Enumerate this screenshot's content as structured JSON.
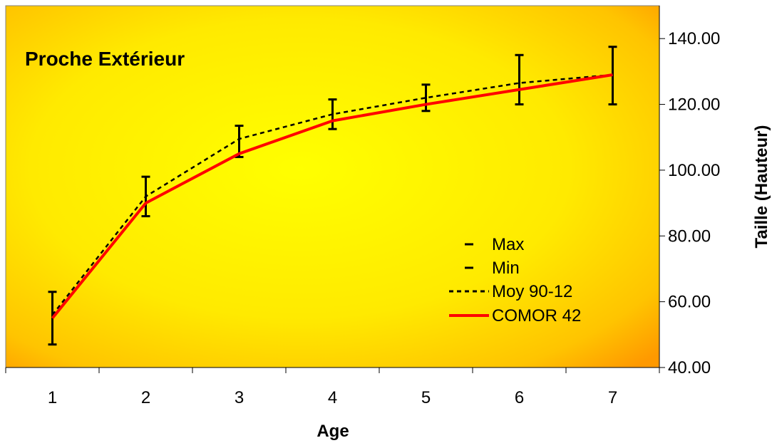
{
  "chart_data": {
    "type": "line",
    "title": "Proche Extérieur",
    "xlabel": "Age",
    "ylabel": "Taille (Hauteur)",
    "x": [
      1,
      2,
      3,
      4,
      5,
      6,
      7
    ],
    "ylim": [
      40,
      150
    ],
    "yticks": [
      "40.00",
      "60.00",
      "80.00",
      "100.00",
      "120.00",
      "140.00"
    ],
    "y_axis_position": "right",
    "grid": false,
    "legend_position": "bottom-right",
    "colors": {
      "moy": "#000000",
      "comor": "#ff0000",
      "error_bar": "#000000",
      "background_bright": "#ffff00",
      "background_corner": "#ff9900"
    },
    "series": [
      {
        "name": "Max",
        "style": "error-bar-top",
        "values": [
          63,
          98,
          113.5,
          121.5,
          126,
          135,
          137.5
        ]
      },
      {
        "name": "Min",
        "style": "error-bar-bottom",
        "values": [
          47,
          86,
          104,
          112.5,
          118,
          120,
          120
        ]
      },
      {
        "name": "Moy 90-12",
        "style": "dashed",
        "values": [
          56,
          92,
          109.5,
          117,
          122,
          126.5,
          129
        ]
      },
      {
        "name": "COMOR 42",
        "style": "solid",
        "values": [
          55,
          90,
          105,
          115,
          120,
          124.5,
          129
        ]
      }
    ]
  }
}
